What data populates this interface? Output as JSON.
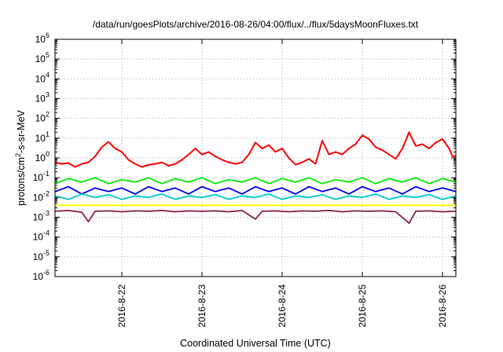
{
  "chart_data": {
    "type": "line",
    "title": "/data/run/goesPlots/archive/2016-08-26/04:00/flux/../flux/5daysMoonFluxes.txt",
    "xlabel": "Coordinated Universal Time (UTC)",
    "ylabel": "protons/cm2-s-sr-MeV",
    "ylabel_parts": {
      "main": "protons/cm",
      "sup": "2",
      "rest": "-s-sr-MeV"
    },
    "yscale": "log",
    "ylim": [
      1e-06,
      1000000.0
    ],
    "y_ticks": [
      {
        "base": "10",
        "exp": "-6",
        "value": 1e-06
      },
      {
        "base": "10",
        "exp": "-5",
        "value": 1e-05
      },
      {
        "base": "10",
        "exp": "-4",
        "value": 0.0001
      },
      {
        "base": "10",
        "exp": "-3",
        "value": 0.001
      },
      {
        "base": "10",
        "exp": "-2",
        "value": 0.01
      },
      {
        "base": "10",
        "exp": "-1",
        "value": 0.1
      },
      {
        "base": "10",
        "exp": "0",
        "value": 1
      },
      {
        "base": "10",
        "exp": "1",
        "value": 10
      },
      {
        "base": "10",
        "exp": "2",
        "value": 100
      },
      {
        "base": "10",
        "exp": "3",
        "value": 1000
      },
      {
        "base": "10",
        "exp": "4",
        "value": 10000
      },
      {
        "base": "10",
        "exp": "5",
        "value": 100000
      },
      {
        "base": "10",
        "exp": "6",
        "value": 1000000
      }
    ],
    "xlim": [
      "2016-08-21 04:00",
      "2016-08-26 04:00"
    ],
    "x_ticks": [
      {
        "label": "2016-8-22",
        "value": "2016-08-22 00:00"
      },
      {
        "label": "2016-8-23",
        "value": "2016-08-23 00:00"
      },
      {
        "label": "2016-8-24",
        "value": "2016-08-24 00:00"
      },
      {
        "label": "2016-8-25",
        "value": "2016-08-25 00:00"
      },
      {
        "label": "2016-8-26",
        "value": "2016-08-26 00:00"
      }
    ],
    "grid": true,
    "legend": false,
    "series": [
      {
        "color": "#ff0000",
        "values": [
          {
            "x": "2016-08-21 04:00",
            "y": 0.6
          },
          {
            "x": "2016-08-21 06:00",
            "y": 0.5
          },
          {
            "x": "2016-08-21 08:00",
            "y": 0.55
          },
          {
            "x": "2016-08-21 10:00",
            "y": 0.35
          },
          {
            "x": "2016-08-21 12:00",
            "y": 0.5
          },
          {
            "x": "2016-08-21 14:00",
            "y": 0.6
          },
          {
            "x": "2016-08-21 16:00",
            "y": 1.2
          },
          {
            "x": "2016-08-21 18:00",
            "y": 3.5
          },
          {
            "x": "2016-08-21 20:00",
            "y": 6.5
          },
          {
            "x": "2016-08-21 22:00",
            "y": 3.0
          },
          {
            "x": "2016-08-22 00:00",
            "y": 2.0
          },
          {
            "x": "2016-08-22 02:00",
            "y": 0.8
          },
          {
            "x": "2016-08-22 04:00",
            "y": 0.5
          },
          {
            "x": "2016-08-22 06:00",
            "y": 0.35
          },
          {
            "x": "2016-08-22 08:00",
            "y": 0.45
          },
          {
            "x": "2016-08-22 10:00",
            "y": 0.5
          },
          {
            "x": "2016-08-22 12:00",
            "y": 0.6
          },
          {
            "x": "2016-08-22 14:00",
            "y": 0.4
          },
          {
            "x": "2016-08-22 16:00",
            "y": 0.5
          },
          {
            "x": "2016-08-22 18:00",
            "y": 0.8
          },
          {
            "x": "2016-08-22 20:00",
            "y": 1.5
          },
          {
            "x": "2016-08-22 22:00",
            "y": 3.0
          },
          {
            "x": "2016-08-23 00:00",
            "y": 1.5
          },
          {
            "x": "2016-08-23 02:00",
            "y": 2.0
          },
          {
            "x": "2016-08-23 04:00",
            "y": 1.2
          },
          {
            "x": "2016-08-23 06:00",
            "y": 0.8
          },
          {
            "x": "2016-08-23 08:00",
            "y": 0.6
          },
          {
            "x": "2016-08-23 10:00",
            "y": 0.5
          },
          {
            "x": "2016-08-23 12:00",
            "y": 0.6
          },
          {
            "x": "2016-08-23 14:00",
            "y": 1.5
          },
          {
            "x": "2016-08-23 16:00",
            "y": 6.0
          },
          {
            "x": "2016-08-23 18:00",
            "y": 3.0
          },
          {
            "x": "2016-08-23 20:00",
            "y": 4.5
          },
          {
            "x": "2016-08-23 22:00",
            "y": 2.0
          },
          {
            "x": "2016-08-24 00:00",
            "y": 3.0
          },
          {
            "x": "2016-08-24 02:00",
            "y": 1.0
          },
          {
            "x": "2016-08-24 04:00",
            "y": 0.45
          },
          {
            "x": "2016-08-24 06:00",
            "y": 0.6
          },
          {
            "x": "2016-08-24 08:00",
            "y": 0.9
          },
          {
            "x": "2016-08-24 10:00",
            "y": 0.5
          },
          {
            "x": "2016-08-24 12:00",
            "y": 7.5
          },
          {
            "x": "2016-08-24 14:00",
            "y": 1.5
          },
          {
            "x": "2016-08-24 16:00",
            "y": 2.0
          },
          {
            "x": "2016-08-24 18:00",
            "y": 1.5
          },
          {
            "x": "2016-08-24 20:00",
            "y": 3.0
          },
          {
            "x": "2016-08-24 22:00",
            "y": 5.0
          },
          {
            "x": "2016-08-25 00:00",
            "y": 14.0
          },
          {
            "x": "2016-08-25 02:00",
            "y": 9.0
          },
          {
            "x": "2016-08-25 04:00",
            "y": 3.5
          },
          {
            "x": "2016-08-25 06:00",
            "y": 2.5
          },
          {
            "x": "2016-08-25 08:00",
            "y": 1.5
          },
          {
            "x": "2016-08-25 10:00",
            "y": 0.9
          },
          {
            "x": "2016-08-25 12:00",
            "y": 3.0
          },
          {
            "x": "2016-08-25 14:00",
            "y": 20.0
          },
          {
            "x": "2016-08-25 16:00",
            "y": 4.0
          },
          {
            "x": "2016-08-25 18:00",
            "y": 5.0
          },
          {
            "x": "2016-08-25 20:00",
            "y": 3.0
          },
          {
            "x": "2016-08-25 22:00",
            "y": 6.0
          },
          {
            "x": "2016-08-26 00:00",
            "y": 9.0
          },
          {
            "x": "2016-08-26 02:00",
            "y": 3.0
          },
          {
            "x": "2016-08-26 03:00",
            "y": 1.2
          },
          {
            "x": "2016-08-26 04:00",
            "y": 1.2
          }
        ]
      },
      {
        "color": "#00ee00",
        "values": [
          {
            "x": "2016-08-21 04:00",
            "y": 0.05
          },
          {
            "x": "2016-08-21 08:00",
            "y": 0.09
          },
          {
            "x": "2016-08-21 12:00",
            "y": 0.06
          },
          {
            "x": "2016-08-21 16:00",
            "y": 0.1
          },
          {
            "x": "2016-08-21 20:00",
            "y": 0.05
          },
          {
            "x": "2016-08-22 00:00",
            "y": 0.08
          },
          {
            "x": "2016-08-22 04:00",
            "y": 0.06
          },
          {
            "x": "2016-08-22 08:00",
            "y": 0.1
          },
          {
            "x": "2016-08-22 12:00",
            "y": 0.05
          },
          {
            "x": "2016-08-22 16:00",
            "y": 0.09
          },
          {
            "x": "2016-08-22 20:00",
            "y": 0.06
          },
          {
            "x": "2016-08-23 00:00",
            "y": 0.1
          },
          {
            "x": "2016-08-23 04:00",
            "y": 0.05
          },
          {
            "x": "2016-08-23 08:00",
            "y": 0.08
          },
          {
            "x": "2016-08-23 12:00",
            "y": 0.06
          },
          {
            "x": "2016-08-23 16:00",
            "y": 0.1
          },
          {
            "x": "2016-08-23 20:00",
            "y": 0.05
          },
          {
            "x": "2016-08-24 00:00",
            "y": 0.09
          },
          {
            "x": "2016-08-24 04:00",
            "y": 0.06
          },
          {
            "x": "2016-08-24 08:00",
            "y": 0.1
          },
          {
            "x": "2016-08-24 12:00",
            "y": 0.05
          },
          {
            "x": "2016-08-24 16:00",
            "y": 0.08
          },
          {
            "x": "2016-08-24 20:00",
            "y": 0.06
          },
          {
            "x": "2016-08-25 00:00",
            "y": 0.1
          },
          {
            "x": "2016-08-25 04:00",
            "y": 0.05
          },
          {
            "x": "2016-08-25 08:00",
            "y": 0.09
          },
          {
            "x": "2016-08-25 12:00",
            "y": 0.06
          },
          {
            "x": "2016-08-25 16:00",
            "y": 0.1
          },
          {
            "x": "2016-08-25 20:00",
            "y": 0.05
          },
          {
            "x": "2016-08-26 00:00",
            "y": 0.09
          },
          {
            "x": "2016-08-26 04:00",
            "y": 0.06
          }
        ]
      },
      {
        "color": "#0000ff",
        "values": [
          {
            "x": "2016-08-21 04:00",
            "y": 0.02
          },
          {
            "x": "2016-08-21 08:00",
            "y": 0.035
          },
          {
            "x": "2016-08-21 12:00",
            "y": 0.015
          },
          {
            "x": "2016-08-21 16:00",
            "y": 0.03
          },
          {
            "x": "2016-08-21 20:00",
            "y": 0.02
          },
          {
            "x": "2016-08-22 00:00",
            "y": 0.03
          },
          {
            "x": "2016-08-22 04:00",
            "y": 0.015
          },
          {
            "x": "2016-08-22 08:00",
            "y": 0.035
          },
          {
            "x": "2016-08-22 12:00",
            "y": 0.02
          },
          {
            "x": "2016-08-22 16:00",
            "y": 0.03
          },
          {
            "x": "2016-08-22 20:00",
            "y": 0.015
          },
          {
            "x": "2016-08-23 00:00",
            "y": 0.035
          },
          {
            "x": "2016-08-23 04:00",
            "y": 0.02
          },
          {
            "x": "2016-08-23 08:00",
            "y": 0.03
          },
          {
            "x": "2016-08-23 12:00",
            "y": 0.015
          },
          {
            "x": "2016-08-23 16:00",
            "y": 0.035
          },
          {
            "x": "2016-08-23 20:00",
            "y": 0.02
          },
          {
            "x": "2016-08-24 00:00",
            "y": 0.03
          },
          {
            "x": "2016-08-24 04:00",
            "y": 0.015
          },
          {
            "x": "2016-08-24 08:00",
            "y": 0.035
          },
          {
            "x": "2016-08-24 12:00",
            "y": 0.02
          },
          {
            "x": "2016-08-24 16:00",
            "y": 0.03
          },
          {
            "x": "2016-08-24 20:00",
            "y": 0.015
          },
          {
            "x": "2016-08-25 00:00",
            "y": 0.035
          },
          {
            "x": "2016-08-25 04:00",
            "y": 0.02
          },
          {
            "x": "2016-08-25 08:00",
            "y": 0.03
          },
          {
            "x": "2016-08-25 12:00",
            "y": 0.015
          },
          {
            "x": "2016-08-25 16:00",
            "y": 0.035
          },
          {
            "x": "2016-08-25 20:00",
            "y": 0.02
          },
          {
            "x": "2016-08-26 00:00",
            "y": 0.03
          },
          {
            "x": "2016-08-26 04:00",
            "y": 0.02
          }
        ]
      },
      {
        "color": "#00cccc",
        "values": [
          {
            "x": "2016-08-21 04:00",
            "y": 0.012
          },
          {
            "x": "2016-08-21 08:00",
            "y": 0.008
          },
          {
            "x": "2016-08-21 12:00",
            "y": 0.015
          },
          {
            "x": "2016-08-21 16:00",
            "y": 0.01
          },
          {
            "x": "2016-08-21 20:00",
            "y": 0.014
          },
          {
            "x": "2016-08-22 00:00",
            "y": 0.008
          },
          {
            "x": "2016-08-22 04:00",
            "y": 0.012
          },
          {
            "x": "2016-08-22 08:00",
            "y": 0.01
          },
          {
            "x": "2016-08-22 12:00",
            "y": 0.015
          },
          {
            "x": "2016-08-22 16:00",
            "y": 0.008
          },
          {
            "x": "2016-08-22 20:00",
            "y": 0.012
          },
          {
            "x": "2016-08-23 00:00",
            "y": 0.01
          },
          {
            "x": "2016-08-23 04:00",
            "y": 0.014
          },
          {
            "x": "2016-08-23 08:00",
            "y": 0.008
          },
          {
            "x": "2016-08-23 12:00",
            "y": 0.012
          },
          {
            "x": "2016-08-23 16:00",
            "y": 0.01
          },
          {
            "x": "2016-08-23 20:00",
            "y": 0.015
          },
          {
            "x": "2016-08-24 00:00",
            "y": 0.008
          },
          {
            "x": "2016-08-24 04:00",
            "y": 0.012
          },
          {
            "x": "2016-08-24 08:00",
            "y": 0.01
          },
          {
            "x": "2016-08-24 12:00",
            "y": 0.014
          },
          {
            "x": "2016-08-24 16:00",
            "y": 0.008
          },
          {
            "x": "2016-08-24 20:00",
            "y": 0.012
          },
          {
            "x": "2016-08-25 00:00",
            "y": 0.01
          },
          {
            "x": "2016-08-25 04:00",
            "y": 0.015
          },
          {
            "x": "2016-08-25 08:00",
            "y": 0.008
          },
          {
            "x": "2016-08-25 12:00",
            "y": 0.012
          },
          {
            "x": "2016-08-25 16:00",
            "y": 0.01
          },
          {
            "x": "2016-08-25 20:00",
            "y": 0.014
          },
          {
            "x": "2016-08-26 00:00",
            "y": 0.008
          },
          {
            "x": "2016-08-26 04:00",
            "y": 0.012
          }
        ]
      },
      {
        "color": "#ffff00",
        "values": [
          {
            "x": "2016-08-21 04:00",
            "y": 0.004
          },
          {
            "x": "2016-08-22 00:00",
            "y": 0.004
          },
          {
            "x": "2016-08-23 00:00",
            "y": 0.004
          },
          {
            "x": "2016-08-24 00:00",
            "y": 0.004
          },
          {
            "x": "2016-08-25 00:00",
            "y": 0.004
          },
          {
            "x": "2016-08-26 04:00",
            "y": 0.004
          }
        ]
      },
      {
        "color": "#8b2252",
        "values": [
          {
            "x": "2016-08-21 04:00",
            "y": 0.002
          },
          {
            "x": "2016-08-21 08:00",
            "y": 0.0022
          },
          {
            "x": "2016-08-21 12:00",
            "y": 0.0018
          },
          {
            "x": "2016-08-21 14:00",
            "y": 0.0006
          },
          {
            "x": "2016-08-21 16:00",
            "y": 0.002
          },
          {
            "x": "2016-08-21 20:00",
            "y": 0.0021
          },
          {
            "x": "2016-08-22 00:00",
            "y": 0.0019
          },
          {
            "x": "2016-08-22 04:00",
            "y": 0.0021
          },
          {
            "x": "2016-08-22 08:00",
            "y": 0.002
          },
          {
            "x": "2016-08-22 12:00",
            "y": 0.0022
          },
          {
            "x": "2016-08-22 16:00",
            "y": 0.0019
          },
          {
            "x": "2016-08-22 20:00",
            "y": 0.0021
          },
          {
            "x": "2016-08-23 00:00",
            "y": 0.002
          },
          {
            "x": "2016-08-23 04:00",
            "y": 0.0021
          },
          {
            "x": "2016-08-23 08:00",
            "y": 0.0019
          },
          {
            "x": "2016-08-23 12:00",
            "y": 0.0022
          },
          {
            "x": "2016-08-23 16:00",
            "y": 0.0008
          },
          {
            "x": "2016-08-23 18:00",
            "y": 0.002
          },
          {
            "x": "2016-08-23 22:00",
            "y": 0.0021
          },
          {
            "x": "2016-08-24 02:00",
            "y": 0.0019
          },
          {
            "x": "2016-08-24 06:00",
            "y": 0.0021
          },
          {
            "x": "2016-08-24 10:00",
            "y": 0.002
          },
          {
            "x": "2016-08-24 14:00",
            "y": 0.0022
          },
          {
            "x": "2016-08-24 18:00",
            "y": 0.0019
          },
          {
            "x": "2016-08-24 22:00",
            "y": 0.0021
          },
          {
            "x": "2016-08-25 02:00",
            "y": 0.002
          },
          {
            "x": "2016-08-25 06:00",
            "y": 0.0021
          },
          {
            "x": "2016-08-25 10:00",
            "y": 0.0019
          },
          {
            "x": "2016-08-25 14:00",
            "y": 0.0005
          },
          {
            "x": "2016-08-25 16:00",
            "y": 0.002
          },
          {
            "x": "2016-08-25 20:00",
            "y": 0.0021
          },
          {
            "x": "2016-08-26 00:00",
            "y": 0.0019
          },
          {
            "x": "2016-08-26 04:00",
            "y": 0.002
          }
        ]
      }
    ]
  }
}
